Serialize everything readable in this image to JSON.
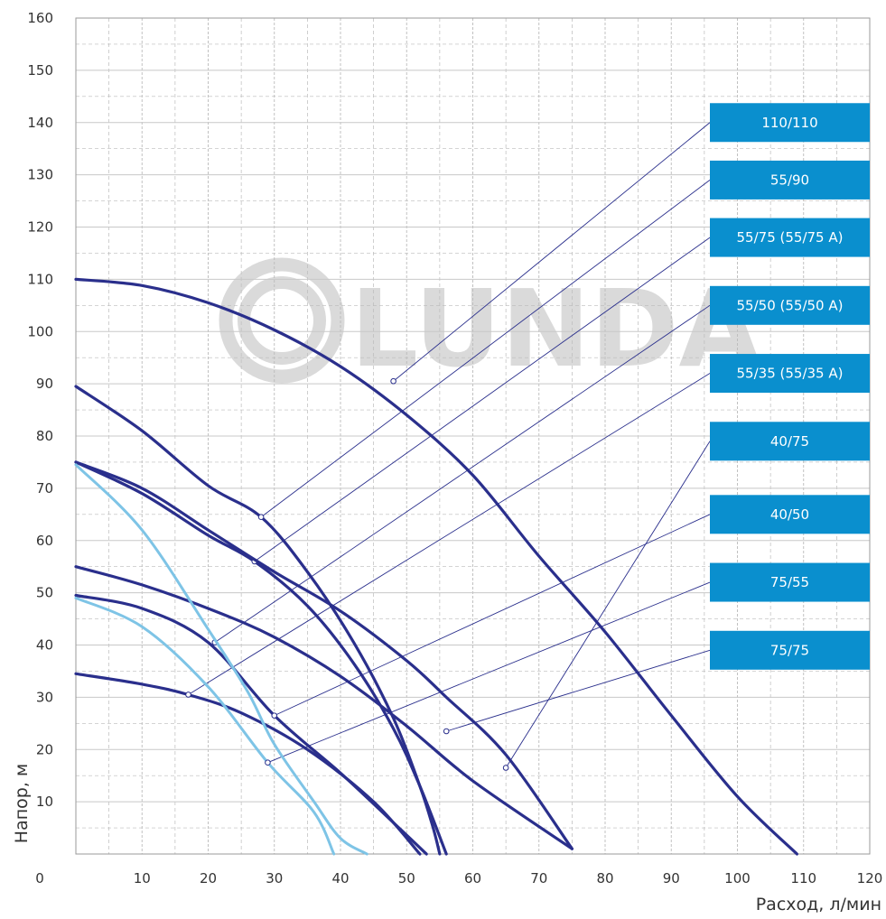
{
  "chart_data": {
    "type": "line",
    "xlabel": "Расход, л/мин",
    "ylabel": "Напор, м",
    "xlim": [
      0,
      120
    ],
    "ylim": [
      0,
      160
    ],
    "x_ticks": [
      0,
      10,
      20,
      30,
      40,
      50,
      60,
      70,
      80,
      90,
      100,
      110,
      120
    ],
    "y_ticks": [
      10,
      20,
      30,
      40,
      50,
      60,
      70,
      80,
      90,
      100,
      110,
      120,
      130,
      140,
      150,
      160
    ],
    "grid": true,
    "legend_position": "right",
    "watermark": "LUNDA",
    "colors": {
      "dark": "#2a2f8c",
      "light": "#7ec4e6",
      "badge": "#0a8fce",
      "grid": "#bbbbbb",
      "leader": "#2a2f8c"
    },
    "series": [
      {
        "name": "110/110",
        "color_key": "dark",
        "points": [
          [
            0,
            110
          ],
          [
            10,
            108.8
          ],
          [
            20,
            105.5
          ],
          [
            30,
            100.3
          ],
          [
            40,
            93.3
          ],
          [
            50,
            84
          ],
          [
            60,
            72.5
          ],
          [
            70,
            57
          ],
          [
            80,
            42.5
          ],
          [
            90,
            26.5
          ],
          [
            100,
            11
          ],
          [
            109,
            0
          ]
        ],
        "marker": [
          48,
          90.5
        ],
        "label_y": 140
      },
      {
        "name": "55/90",
        "color_key": "dark",
        "points": [
          [
            0,
            89.5
          ],
          [
            10,
            81
          ],
          [
            20,
            70.5
          ],
          [
            28,
            64.5
          ],
          [
            35,
            54
          ],
          [
            42,
            40.5
          ],
          [
            48,
            26
          ],
          [
            52,
            13
          ],
          [
            54,
            5
          ],
          [
            55,
            0
          ]
        ],
        "marker": [
          28,
          64.5
        ],
        "label_y": 129
      },
      {
        "name": "55/75 (55/75 A)",
        "color_key": "dark",
        "points": [
          [
            0,
            75
          ],
          [
            10,
            69
          ],
          [
            20,
            61
          ],
          [
            27,
            56
          ],
          [
            35,
            47.5
          ],
          [
            42,
            36.5
          ],
          [
            48,
            24
          ],
          [
            52,
            13
          ],
          [
            56,
            0
          ]
        ],
        "marker": [
          27,
          56
        ],
        "label_y": 118
      },
      {
        "name": "55/50 (55/50 A)",
        "color_key": "dark",
        "points": [
          [
            0,
            55
          ],
          [
            10,
            51.5
          ],
          [
            21,
            46.5
          ],
          [
            30,
            41.5
          ],
          [
            40,
            34
          ],
          [
            50,
            24.5
          ],
          [
            60,
            14
          ],
          [
            75,
            1
          ]
        ],
        "marker": [
          21,
          40.5
        ],
        "label_y": 105
      },
      {
        "name": "55/35 (55/35 A)",
        "color_key": "dark",
        "points": [
          [
            0,
            34.5
          ],
          [
            10,
            32.5
          ],
          [
            17,
            30.5
          ],
          [
            25,
            27
          ],
          [
            35,
            20
          ],
          [
            45,
            10
          ],
          [
            52,
            0
          ]
        ],
        "marker": [
          17,
          30.5
        ],
        "label_y": 92
      },
      {
        "name": "40/75",
        "color_key": "dark",
        "points": [
          [
            0,
            75
          ],
          [
            10,
            70
          ],
          [
            20,
            62
          ],
          [
            30,
            54
          ],
          [
            40,
            46.5
          ],
          [
            50,
            37
          ],
          [
            56,
            30
          ],
          [
            65,
            19
          ],
          [
            75,
            1
          ]
        ],
        "marker": [
          65,
          16.5
        ],
        "label_y": 79
      },
      {
        "name": "40/50",
        "color_key": "dark",
        "points": [
          [
            0,
            49.5
          ],
          [
            10,
            47
          ],
          [
            20,
            40.5
          ],
          [
            30,
            26.5
          ],
          [
            40,
            15.5
          ],
          [
            48,
            6
          ],
          [
            53,
            0
          ]
        ],
        "marker": [
          30,
          26.5
        ],
        "label_y": 65
      },
      {
        "name": "75/55",
        "color_key": "light",
        "points": [
          [
            0,
            49
          ],
          [
            10,
            43.5
          ],
          [
            20,
            32
          ],
          [
            29,
            17.5
          ],
          [
            36,
            8
          ],
          [
            39,
            0
          ]
        ],
        "marker": [
          29,
          17.5
        ],
        "label_y": 52
      },
      {
        "name": "75/75",
        "color_key": "light",
        "points": [
          [
            0,
            74.5
          ],
          [
            10,
            62
          ],
          [
            20,
            43
          ],
          [
            26,
            31
          ],
          [
            30,
            21
          ],
          [
            36,
            10
          ],
          [
            40,
            3
          ],
          [
            44,
            0
          ]
        ],
        "marker": [
          56,
          23.5
        ],
        "label_y": 39
      }
    ]
  }
}
